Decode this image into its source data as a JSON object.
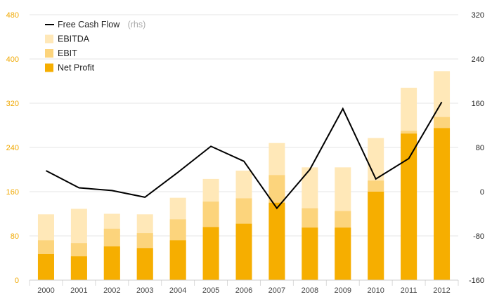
{
  "chart_data": {
    "type": "bar",
    "categories": [
      "2000",
      "2001",
      "2002",
      "2003",
      "2004",
      "2005",
      "2006",
      "2007",
      "2008",
      "2009",
      "2010",
      "2011",
      "2012"
    ],
    "series": [
      {
        "name": "EBITDA",
        "axis": "left",
        "stack": "overlay",
        "color": "#ffe8b8",
        "values": [
          119,
          129,
          120,
          119,
          149,
          183,
          198,
          248,
          204,
          204,
          257,
          348,
          378
        ]
      },
      {
        "name": "EBIT",
        "axis": "left",
        "stack": "overlay",
        "color": "#fcd47c",
        "values": [
          72,
          67,
          93,
          85,
          110,
          142,
          148,
          190,
          130,
          125,
          180,
          270,
          295
        ]
      },
      {
        "name": "Net Profit",
        "axis": "left",
        "stack": "overlay",
        "color": "#f6ae00",
        "values": [
          47,
          43,
          61,
          58,
          72,
          96,
          102,
          140,
          95,
          95,
          160,
          265,
          275
        ]
      },
      {
        "name": "Free Cash Flow",
        "note": "(rhs)",
        "axis": "right",
        "type": "line",
        "color": "#000000",
        "values": [
          38,
          7,
          2,
          -10,
          35,
          82,
          55,
          -30,
          40,
          150,
          23,
          60,
          162
        ]
      }
    ],
    "left_axis": {
      "ylim": [
        0,
        480
      ],
      "ticks": [
        "0",
        "80",
        "160",
        "240",
        "320",
        "400",
        "480"
      ]
    },
    "right_axis": {
      "ylim": [
        -160,
        320
      ],
      "ticks": [
        "-160",
        "-80",
        "0",
        "80",
        "160",
        "240",
        "320"
      ]
    },
    "legend_position": "top-left",
    "grid": true,
    "colors": {
      "left_tick": "#f0a800",
      "right_tick": "#222222",
      "grid": "#e6e6e6"
    }
  }
}
